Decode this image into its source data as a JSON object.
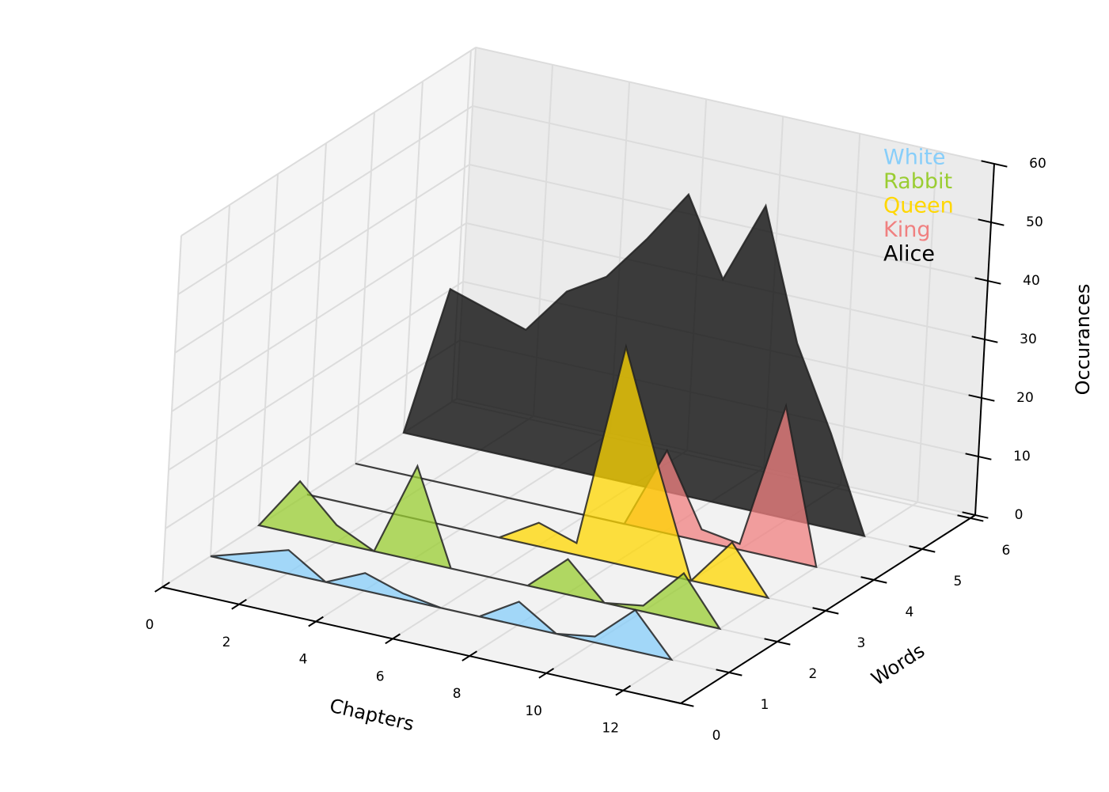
{
  "chart_data": {
    "type": "area3d",
    "xlabel": "Chapters",
    "ylabel": "Words",
    "zlabel": "Occurances",
    "x": [
      0,
      1,
      2,
      3,
      4,
      5,
      6,
      7,
      8,
      9,
      10,
      11,
      12
    ],
    "series": [
      {
        "name": "White",
        "color": "#87cefa",
        "y": 1,
        "values": [
          0,
          2,
          4,
          0,
          3,
          1,
          0,
          0,
          4,
          0,
          1,
          7,
          0
        ]
      },
      {
        "name": "Rabbit",
        "color": "#9acd32",
        "y": 2,
        "values": [
          0,
          9,
          3,
          0,
          16,
          0,
          0,
          0,
          6,
          0,
          1,
          8,
          0
        ]
      },
      {
        "name": "Queen",
        "color": "#ffd700",
        "y": 3,
        "values": [
          0,
          0,
          0,
          0,
          0,
          0,
          4,
          2,
          37,
          18,
          0,
          8,
          0
        ]
      },
      {
        "name": "King",
        "color": "#f08080",
        "y": 4,
        "values": [
          0,
          0,
          0,
          0,
          0,
          0,
          0,
          0,
          14,
          2,
          1,
          26,
          0
        ]
      },
      {
        "name": "Alice",
        "color": "#000000",
        "y": 5,
        "values": [
          0,
          26,
          24,
          22,
          30,
          34,
          42,
          51,
          38,
          52,
          30,
          16,
          0
        ]
      }
    ],
    "xlim": [
      0,
      13.5
    ],
    "ylim": [
      0,
      6.1
    ],
    "zlim": [
      0,
      60
    ],
    "xticks": [
      0,
      2,
      4,
      6,
      8,
      10,
      12
    ],
    "yticks": [
      0,
      1,
      2,
      3,
      4,
      5,
      6
    ],
    "zticks": [
      0,
      10,
      20,
      30,
      40,
      50,
      60
    ],
    "grid": true,
    "legend": "upper right"
  }
}
